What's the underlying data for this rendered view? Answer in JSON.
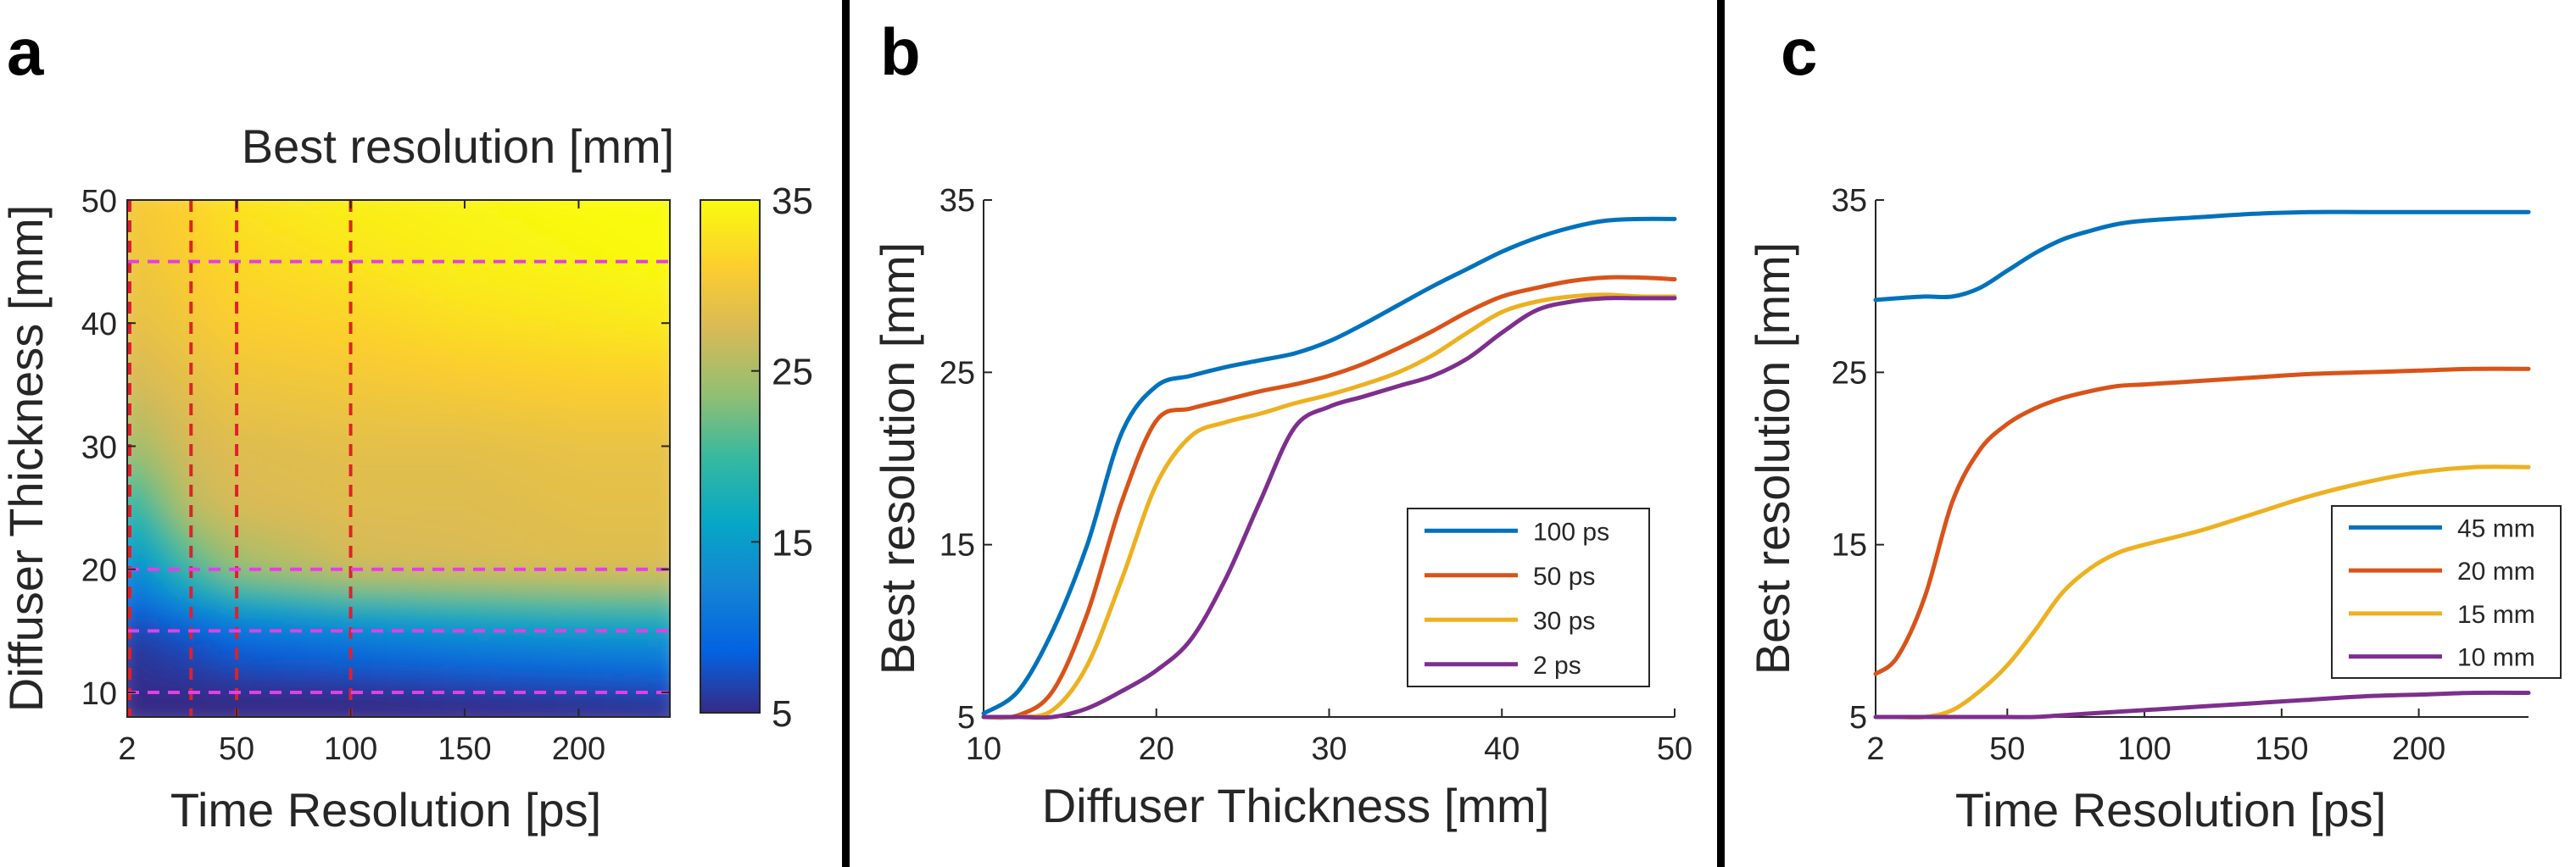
{
  "panels": [
    {
      "letter": "a"
    },
    {
      "letter": "b"
    },
    {
      "letter": "c"
    }
  ],
  "chart_data": [
    {
      "type": "heatmap",
      "title": "Best resolution [mm]",
      "xlabel": "Time Resolution [ps]",
      "ylabel": "Diffuser Thickness [mm]",
      "xlim": [
        2,
        240
      ],
      "ylim": [
        8,
        50
      ],
      "xticks": [
        2,
        50,
        100,
        150,
        200
      ],
      "yticks": [
        10,
        20,
        30,
        40,
        50
      ],
      "colorbar": {
        "min": 5,
        "max": 35,
        "ticks": [
          5,
          15,
          25,
          35
        ],
        "colormap": "parula"
      },
      "vertical_dashed_lines": [
        2,
        30,
        50,
        100
      ],
      "horizontal_dashed_lines": [
        10,
        15,
        20,
        45
      ],
      "vertical_line_color": "#e0202a",
      "horizontal_line_color": "#e43ee6",
      "description_grid": {
        "x": [
          2,
          30,
          50,
          100,
          150,
          200,
          240
        ],
        "y": [
          8,
          10,
          15,
          20,
          25,
          30,
          35,
          40,
          45,
          50
        ],
        "z": [
          [
            5,
            5,
            5,
            5,
            5,
            5,
            5
          ],
          [
            5,
            5,
            5,
            5,
            5.5,
            6,
            6.5
          ],
          [
            6,
            8,
            10,
            12,
            13.5,
            14.5,
            15
          ],
          [
            12,
            20,
            24,
            27,
            27.5,
            28,
            28
          ],
          [
            18,
            26,
            27.5,
            28,
            28,
            28.5,
            28.5
          ],
          [
            24,
            27.5,
            28,
            28.5,
            28.5,
            29,
            29
          ],
          [
            27,
            28.5,
            29.5,
            30,
            30.5,
            31,
            31
          ],
          [
            28.5,
            30,
            31,
            31.5,
            32.5,
            33,
            33.5
          ],
          [
            29.5,
            31,
            32,
            33,
            34,
            34.5,
            35
          ],
          [
            30,
            31.5,
            33,
            34,
            34.5,
            35,
            35
          ]
        ]
      }
    },
    {
      "type": "line",
      "xlabel": "Diffuser Thickness [mm]",
      "ylabel": "Best resolution [mm]",
      "xlim": [
        10,
        50
      ],
      "ylim": [
        5,
        35
      ],
      "xticks": [
        10,
        20,
        30,
        40,
        50
      ],
      "yticks": [
        5,
        15,
        25,
        35
      ],
      "legend_position": "lower-right",
      "x": [
        10,
        12,
        14,
        16,
        18,
        20,
        22,
        24,
        26,
        28,
        30,
        32,
        34,
        36,
        38,
        40,
        42,
        44,
        46,
        48,
        50
      ],
      "series": [
        {
          "name": "100 ps",
          "color": "#0072bd",
          "values": [
            5.2,
            6.5,
            10,
            15,
            21.5,
            24.2,
            24.8,
            25.3,
            25.7,
            26.1,
            26.8,
            27.8,
            28.9,
            30,
            31,
            32,
            32.8,
            33.4,
            33.8,
            33.9,
            33.9
          ]
        },
        {
          "name": "50 ps",
          "color": "#d95319",
          "values": [
            5,
            5.1,
            6.5,
            11,
            17.5,
            22.2,
            22.9,
            23.4,
            23.9,
            24.3,
            24.8,
            25.5,
            26.4,
            27.4,
            28.5,
            29.4,
            29.9,
            30.3,
            30.5,
            30.5,
            30.4
          ]
        },
        {
          "name": "30 ps",
          "color": "#edb120",
          "values": [
            5,
            5,
            5.4,
            8,
            13,
            18.5,
            21.3,
            22.1,
            22.6,
            23.2,
            23.7,
            24.3,
            25,
            26,
            27.3,
            28.5,
            29.1,
            29.4,
            29.5,
            29.4,
            29.4
          ]
        },
        {
          "name": "2 ps",
          "color": "#7e2f8e",
          "values": [
            5,
            5,
            5,
            5.5,
            6.5,
            7.7,
            9.5,
            13,
            17.5,
            21.8,
            23,
            23.6,
            24.2,
            24.8,
            25.8,
            27.3,
            28.6,
            29.1,
            29.3,
            29.3,
            29.3
          ]
        }
      ]
    },
    {
      "type": "line",
      "xlabel": "Time Resolution [ps]",
      "ylabel": "Best resolution [mm]",
      "xlim": [
        2,
        240
      ],
      "ylim": [
        5,
        35
      ],
      "xticks": [
        2,
        50,
        100,
        150,
        200
      ],
      "yticks": [
        5,
        15,
        25,
        35
      ],
      "legend_position": "lower-right",
      "x": [
        2,
        10,
        20,
        30,
        40,
        50,
        60,
        70,
        80,
        90,
        100,
        120,
        140,
        160,
        180,
        200,
        220,
        240
      ],
      "series": [
        {
          "name": "45 mm",
          "color": "#0072bd",
          "values": [
            29.2,
            29.3,
            29.4,
            29.4,
            29.9,
            30.9,
            31.9,
            32.7,
            33.2,
            33.6,
            33.8,
            34,
            34.2,
            34.3,
            34.3,
            34.3,
            34.3,
            34.3
          ]
        },
        {
          "name": "20 mm",
          "color": "#d95319",
          "values": [
            7.5,
            8.5,
            12,
            17.5,
            20.5,
            22,
            22.9,
            23.5,
            23.9,
            24.2,
            24.3,
            24.5,
            24.7,
            24.9,
            25,
            25.1,
            25.2,
            25.2
          ]
        },
        {
          "name": "15 mm",
          "color": "#edb120",
          "values": [
            5,
            5,
            5,
            5.4,
            6.5,
            8,
            10,
            12.2,
            13.6,
            14.5,
            15,
            15.8,
            16.8,
            17.8,
            18.6,
            19.2,
            19.5,
            19.5
          ]
        },
        {
          "name": "10 mm",
          "color": "#7e2f8e",
          "values": [
            5,
            5,
            5,
            5,
            5,
            5,
            5,
            5.1,
            5.2,
            5.3,
            5.4,
            5.6,
            5.8,
            6,
            6.2,
            6.3,
            6.4,
            6.4
          ]
        }
      ]
    }
  ]
}
